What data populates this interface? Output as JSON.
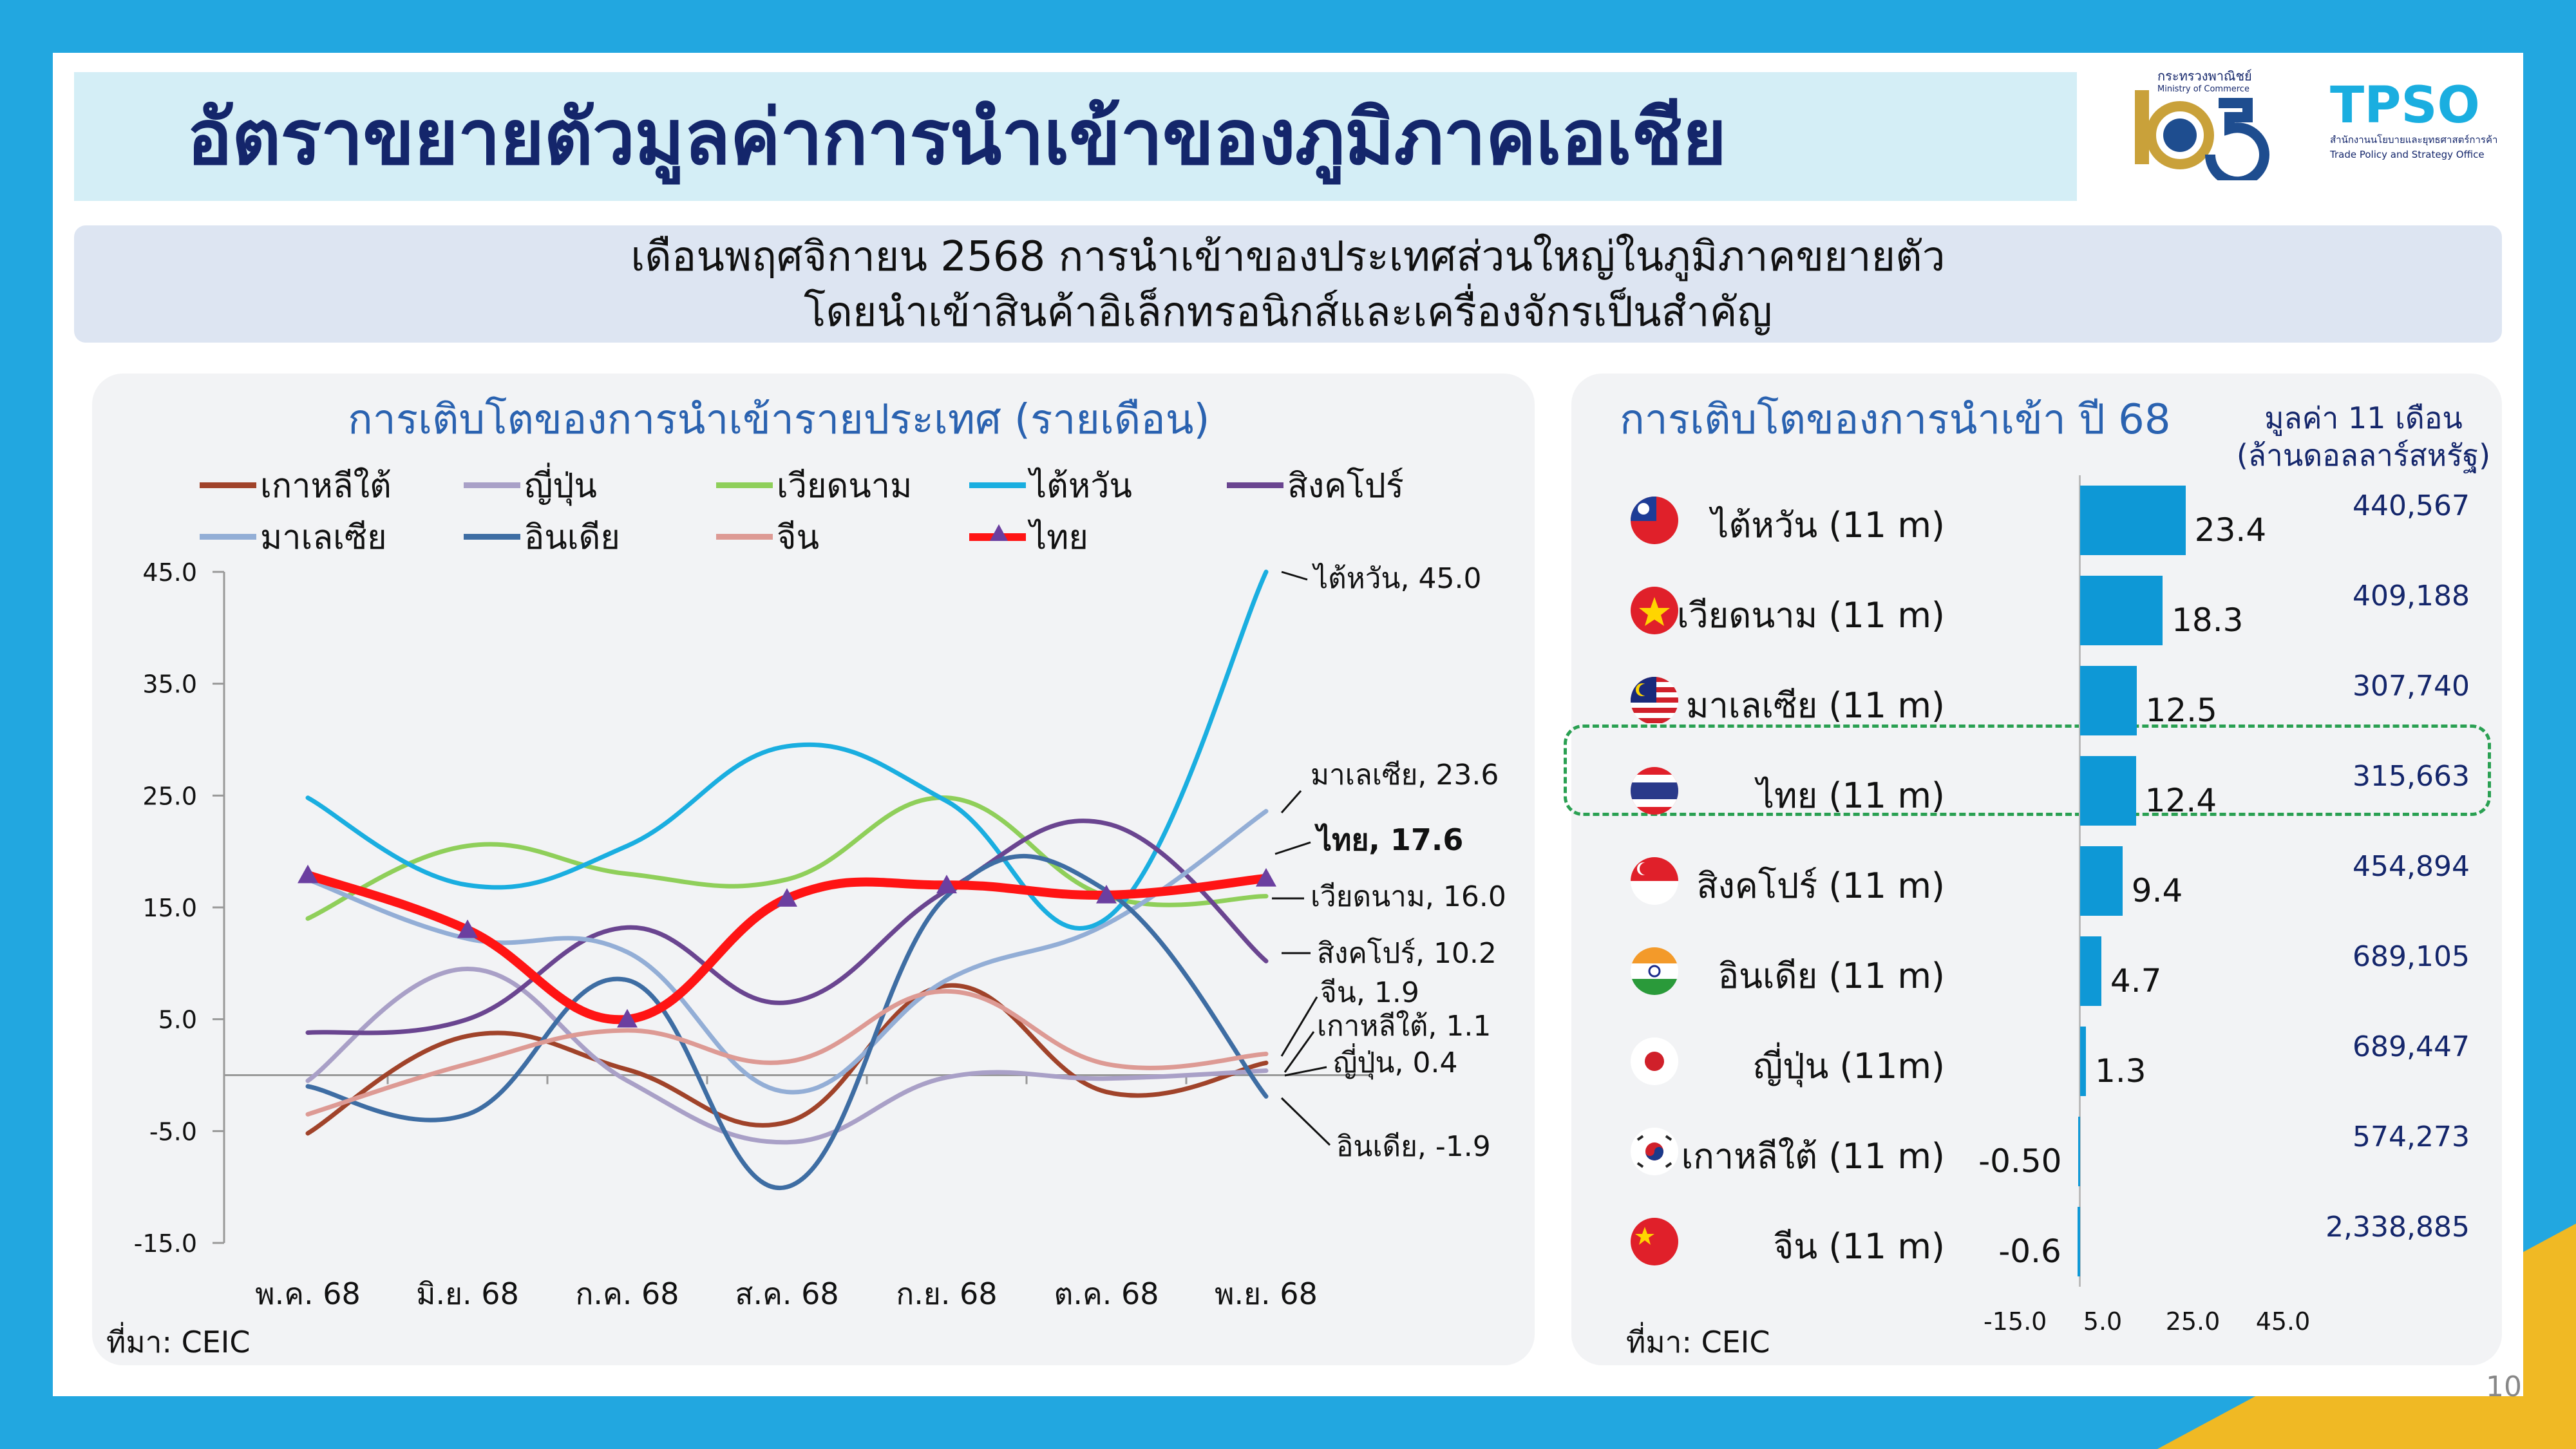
{
  "title": "อัตราขยายตัวมูลค่าการนำเข้าของภูมิภาคเอเชีย",
  "subtitle": {
    "line1": "เดือนพฤศจิกายน 2568 การนำเข้าของประเทศส่วนใหญ่ในภูมิภาคขยายตัว",
    "line2": "โดยนำเข้าสินค้าอิเล็กทรอนิกส์และเครื่องจักรเป็นสำคัญ"
  },
  "logos": {
    "moc_th": "กระทรวงพาณิชย์",
    "moc_en": "Ministry of Commerce",
    "tpso": "TPSO",
    "tpso_th": "สำนักงานนโยบายและยุทธศาสตร์การค้า",
    "tpso_en": "Trade Policy and Strategy Office"
  },
  "left_panel": {
    "title": "การเติบโตของการนำเข้ารายประเทศ (รายเดือน)",
    "source": "ที่มา: CEIC"
  },
  "right_panel": {
    "title": "การเติบโตของการนำเข้า ปี 68",
    "value_header_1": "มูลค่า 11 เดือน",
    "value_header_2": "(ล้านดอลลาร์สหรัฐ)",
    "source": "ที่มา: CEIC"
  },
  "colors": {
    "korea": "#a0432a",
    "japan": "#a9a0c7",
    "vietnam": "#8fcf5a",
    "taiwan": "#1aaee0",
    "singapore": "#6a4590",
    "malaysia": "#93aed6",
    "india": "#3e6da3",
    "china": "#dd9a94",
    "thailand": "#ff1414",
    "bar": "#0e98d6",
    "title_navy": "#14266b"
  },
  "chart_data": [
    {
      "type": "line",
      "title": "การเติบโตของการนำเข้ารายประเทศ (รายเดือน)",
      "categories": [
        "พ.ค. 68",
        "มิ.ย. 68",
        "ก.ค. 68",
        "ส.ค. 68",
        "ก.ย. 68",
        "ต.ค. 68",
        "พ.ย. 68"
      ],
      "ylim": [
        -15,
        45
      ],
      "yticks": [
        "45.0",
        "35.0",
        "25.0",
        "15.0",
        "5.0",
        "-5.0",
        "-15.0"
      ],
      "series": [
        {
          "key": "korea",
          "name": "เกาหลีใต้",
          "values": [
            -5.2,
            3.5,
            0.5,
            -4.2,
            8.0,
            -1.5,
            1.1
          ],
          "end_label": "เกาหลีใต้, 1.1"
        },
        {
          "key": "japan",
          "name": "ญี่ปุ่น",
          "values": [
            -0.5,
            9.5,
            -0.5,
            -6.0,
            -0.2,
            -0.3,
            0.4
          ],
          "end_label": "ญี่ปุ่น, 0.4"
        },
        {
          "key": "vietnam",
          "name": "เวียดนาม",
          "values": [
            14.0,
            20.5,
            18.0,
            17.5,
            24.8,
            16.0,
            16.0
          ],
          "end_label": "เวียดนาม, 16.0"
        },
        {
          "key": "taiwan",
          "name": "ไต้หวัน",
          "values": [
            24.8,
            17.0,
            20.5,
            29.4,
            24.5,
            14.0,
            45.0
          ],
          "end_label": "ไต้หวัน, 45.0"
        },
        {
          "key": "singapore",
          "name": "สิงคโปร์",
          "values": [
            3.8,
            5.0,
            13.2,
            6.5,
            16.5,
            22.5,
            10.2
          ],
          "end_label": "สิงคโปร์, 10.2"
        },
        {
          "key": "malaysia",
          "name": "มาเลเซีย",
          "values": [
            17.5,
            12.2,
            11.0,
            -1.5,
            8.5,
            13.5,
            23.6
          ],
          "end_label": "มาเลเซีย, 23.6"
        },
        {
          "key": "india",
          "name": "อินเดีย",
          "values": [
            -1.0,
            -3.5,
            8.5,
            -10.0,
            16.0,
            16.5,
            -1.9
          ],
          "end_label": "อินเดีย, -1.9"
        },
        {
          "key": "china",
          "name": "จีน",
          "values": [
            -3.5,
            1.0,
            4.0,
            1.2,
            7.5,
            1.0,
            1.9
          ],
          "end_label": "จีน, 1.9"
        },
        {
          "key": "thailand",
          "name": "ไทย",
          "values": [
            17.9,
            13.0,
            5.0,
            15.8,
            17.0,
            16.1,
            17.6
          ],
          "end_label": "ไทย, 17.6"
        }
      ]
    },
    {
      "type": "bar",
      "orientation": "horizontal",
      "title": "การเติบโตของการนำเข้า ปี 68",
      "xlim": [
        -15,
        45
      ],
      "xticks": [
        "-15.0",
        "5.0",
        "25.0",
        "45.0"
      ],
      "rows": [
        {
          "label": "ไต้หวัน (11 m)",
          "flag": "taiwan",
          "value": 23.4,
          "value_label": "23.4",
          "amount": "440,567"
        },
        {
          "label": "เวียดนาม (11 m)",
          "flag": "vietnam",
          "value": 18.3,
          "value_label": "18.3",
          "amount": "409,188"
        },
        {
          "label": "มาเลเซีย (11 m)",
          "flag": "malaysia",
          "value": 12.5,
          "value_label": "12.5",
          "amount": "307,740"
        },
        {
          "label": "ไทย (11 m)",
          "flag": "thailand",
          "value": 12.4,
          "value_label": "12.4",
          "amount": "315,663"
        },
        {
          "label": "สิงคโปร์ (11 m)",
          "flag": "singapore",
          "value": 9.4,
          "value_label": "9.4",
          "amount": "454,894"
        },
        {
          "label": "อินเดีย (11 m)",
          "flag": "india",
          "value": 4.7,
          "value_label": "4.7",
          "amount": "689,105"
        },
        {
          "label": "ญี่ปุ่น (11m)",
          "flag": "japan",
          "value": 1.3,
          "value_label": "1.3",
          "amount": "689,447"
        },
        {
          "label": "เกาหลีใต้ (11 m)",
          "flag": "korea",
          "value": -0.5,
          "value_label": "-0.50",
          "amount": "574,273"
        },
        {
          "label": "จีน (11 m)",
          "flag": "china",
          "value": -0.6,
          "value_label": "-0.6",
          "amount": "2,338,885"
        }
      ]
    }
  ],
  "page_number": "10"
}
